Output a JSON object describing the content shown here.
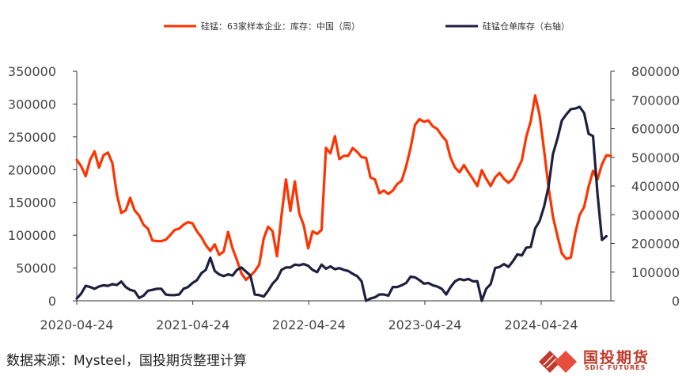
{
  "chart_data": {
    "type": "line",
    "title": "",
    "legend_position": "top",
    "grid": false,
    "x_ticks": [
      "2020-04-24",
      "2021-04-24",
      "2022-04-24",
      "2023-04-24",
      "2024-04-24"
    ],
    "y_left": {
      "range": [
        0,
        350000
      ],
      "ticks": [
        "0",
        "50000",
        "100000",
        "150000",
        "200000",
        "250000",
        "300000",
        "350000"
      ]
    },
    "y_right": {
      "range": [
        0,
        800000
      ],
      "ticks": [
        "0",
        "100000",
        "200000",
        "300000",
        "400000",
        "500000",
        "600000",
        "700000",
        "800000"
      ]
    },
    "series": [
      {
        "name": "硅锰：63家样本企业：库存：中国（周）",
        "axis": "left",
        "color": "#ff3300",
        "points": [
          [
            "2020-04-24",
            215000
          ],
          [
            "2020-05-08",
            205000
          ],
          [
            "2020-05-22",
            190000
          ],
          [
            "2020-06-05",
            215000
          ],
          [
            "2020-06-19",
            228000
          ],
          [
            "2020-07-03",
            203000
          ],
          [
            "2020-07-17",
            222000
          ],
          [
            "2020-07-31",
            226000
          ],
          [
            "2020-08-14",
            210000
          ],
          [
            "2020-08-28",
            163000
          ],
          [
            "2020-09-11",
            134000
          ],
          [
            "2020-09-25",
            138000
          ],
          [
            "2020-10-09",
            157000
          ],
          [
            "2020-10-23",
            138000
          ],
          [
            "2020-11-06",
            130000
          ],
          [
            "2020-11-20",
            116000
          ],
          [
            "2020-12-04",
            110000
          ],
          [
            "2020-12-18",
            92000
          ],
          [
            "2021-01-01",
            91000
          ],
          [
            "2021-01-15",
            91000
          ],
          [
            "2021-01-29",
            93000
          ],
          [
            "2021-02-12",
            100000
          ],
          [
            "2021-02-26",
            108000
          ],
          [
            "2021-03-12",
            110000
          ],
          [
            "2021-03-26",
            116000
          ],
          [
            "2021-04-09",
            120000
          ],
          [
            "2021-04-23",
            118000
          ],
          [
            "2021-05-07",
            106000
          ],
          [
            "2021-05-21",
            97000
          ],
          [
            "2021-06-04",
            85000
          ],
          [
            "2021-06-18",
            76000
          ],
          [
            "2021-07-02",
            86000
          ],
          [
            "2021-07-16",
            70000
          ],
          [
            "2021-07-30",
            75000
          ],
          [
            "2021-08-13",
            105000
          ],
          [
            "2021-08-27",
            80000
          ],
          [
            "2021-09-10",
            62000
          ],
          [
            "2021-09-24",
            42000
          ],
          [
            "2021-10-08",
            32000
          ],
          [
            "2021-10-22",
            38000
          ],
          [
            "2021-11-05",
            45000
          ],
          [
            "2021-11-19",
            55000
          ],
          [
            "2021-12-03",
            95000
          ],
          [
            "2021-12-17",
            113000
          ],
          [
            "2021-12-31",
            106000
          ],
          [
            "2022-01-14",
            68000
          ],
          [
            "2022-01-28",
            130000
          ],
          [
            "2022-02-11",
            185000
          ],
          [
            "2022-02-25",
            137000
          ],
          [
            "2022-03-11",
            182000
          ],
          [
            "2022-03-25",
            133000
          ],
          [
            "2022-04-08",
            115000
          ],
          [
            "2022-04-22",
            80000
          ],
          [
            "2022-05-06",
            106000
          ],
          [
            "2022-05-20",
            102000
          ],
          [
            "2022-06-03",
            108000
          ],
          [
            "2022-06-17",
            233000
          ],
          [
            "2022-07-01",
            225000
          ],
          [
            "2022-07-15",
            251000
          ],
          [
            "2022-07-29",
            216000
          ],
          [
            "2022-08-12",
            221000
          ],
          [
            "2022-08-26",
            221000
          ],
          [
            "2022-09-09",
            233000
          ],
          [
            "2022-09-23",
            227000
          ],
          [
            "2022-10-07",
            219000
          ],
          [
            "2022-10-21",
            218000
          ],
          [
            "2022-11-04",
            188000
          ],
          [
            "2022-11-18",
            185000
          ],
          [
            "2022-12-02",
            164000
          ],
          [
            "2022-12-16",
            168000
          ],
          [
            "2022-12-30",
            163000
          ],
          [
            "2023-01-13",
            168000
          ],
          [
            "2023-01-27",
            178000
          ],
          [
            "2023-02-10",
            183000
          ],
          [
            "2023-02-24",
            205000
          ],
          [
            "2023-03-10",
            233000
          ],
          [
            "2023-03-24",
            268000
          ],
          [
            "2023-04-07",
            277000
          ],
          [
            "2023-04-21",
            273000
          ],
          [
            "2023-05-05",
            275000
          ],
          [
            "2023-05-19",
            266000
          ],
          [
            "2023-06-02",
            262000
          ],
          [
            "2023-06-16",
            252000
          ],
          [
            "2023-06-30",
            244000
          ],
          [
            "2023-07-14",
            218000
          ],
          [
            "2023-07-28",
            203000
          ],
          [
            "2023-08-11",
            196000
          ],
          [
            "2023-08-25",
            207000
          ],
          [
            "2023-09-08",
            196000
          ],
          [
            "2023-09-22",
            186000
          ],
          [
            "2023-10-06",
            175000
          ],
          [
            "2023-10-20",
            199000
          ],
          [
            "2023-11-03",
            186000
          ],
          [
            "2023-11-17",
            175000
          ],
          [
            "2023-12-01",
            188000
          ],
          [
            "2023-12-15",
            195000
          ],
          [
            "2023-12-29",
            186000
          ],
          [
            "2024-01-12",
            180000
          ],
          [
            "2024-01-26",
            186000
          ],
          [
            "2024-02-09",
            200000
          ],
          [
            "2024-02-23",
            214000
          ],
          [
            "2024-03-08",
            250000
          ],
          [
            "2024-03-22",
            274000
          ],
          [
            "2024-04-05",
            313000
          ],
          [
            "2024-04-19",
            283000
          ],
          [
            "2024-05-03",
            230000
          ],
          [
            "2024-05-17",
            173000
          ],
          [
            "2024-05-31",
            128000
          ],
          [
            "2024-06-14",
            99000
          ],
          [
            "2024-06-28",
            72000
          ],
          [
            "2024-07-12",
            64000
          ],
          [
            "2024-07-26",
            66000
          ],
          [
            "2024-08-09",
            103000
          ],
          [
            "2024-08-23",
            131000
          ],
          [
            "2024-09-06",
            143000
          ],
          [
            "2024-09-20",
            174000
          ],
          [
            "2024-10-04",
            198000
          ],
          [
            "2024-10-18",
            185000
          ],
          [
            "2024-11-01",
            208000
          ],
          [
            "2024-11-15",
            222000
          ],
          [
            "2024-11-29",
            221000
          ]
        ]
      },
      {
        "name": "硅锰仓单库存（右轴）",
        "axis": "right",
        "color": "#1f2040",
        "points": [
          [
            "2020-04-24",
            8000
          ],
          [
            "2020-05-08",
            25000
          ],
          [
            "2020-05-22",
            52000
          ],
          [
            "2020-06-05",
            48000
          ],
          [
            "2020-06-19",
            42000
          ],
          [
            "2020-07-03",
            50000
          ],
          [
            "2020-07-17",
            54000
          ],
          [
            "2020-07-31",
            52000
          ],
          [
            "2020-08-14",
            58000
          ],
          [
            "2020-08-28",
            55000
          ],
          [
            "2020-09-11",
            67000
          ],
          [
            "2020-09-25",
            48000
          ],
          [
            "2020-10-09",
            38000
          ],
          [
            "2020-10-23",
            34000
          ],
          [
            "2020-11-06",
            10000
          ],
          [
            "2020-11-20",
            18000
          ],
          [
            "2020-12-04",
            35000
          ],
          [
            "2020-12-18",
            38000
          ],
          [
            "2021-01-01",
            42000
          ],
          [
            "2021-01-15",
            42000
          ],
          [
            "2021-01-29",
            22000
          ],
          [
            "2021-02-12",
            20000
          ],
          [
            "2021-02-26",
            20000
          ],
          [
            "2021-03-12",
            22000
          ],
          [
            "2021-03-26",
            42000
          ],
          [
            "2021-04-09",
            48000
          ],
          [
            "2021-04-23",
            62000
          ],
          [
            "2021-05-07",
            72000
          ],
          [
            "2021-05-21",
            96000
          ],
          [
            "2021-06-04",
            108000
          ],
          [
            "2021-06-18",
            150000
          ],
          [
            "2021-07-02",
            104000
          ],
          [
            "2021-07-16",
            92000
          ],
          [
            "2021-07-30",
            86000
          ],
          [
            "2021-08-13",
            92000
          ],
          [
            "2021-08-27",
            88000
          ],
          [
            "2021-09-10",
            108000
          ],
          [
            "2021-09-24",
            116000
          ],
          [
            "2021-10-08",
            102000
          ],
          [
            "2021-10-22",
            88000
          ],
          [
            "2021-11-05",
            22000
          ],
          [
            "2021-11-19",
            20000
          ],
          [
            "2021-12-03",
            15000
          ],
          [
            "2021-12-17",
            35000
          ],
          [
            "2021-12-31",
            60000
          ],
          [
            "2022-01-14",
            76000
          ],
          [
            "2022-01-28",
            108000
          ],
          [
            "2022-02-11",
            116000
          ],
          [
            "2022-02-25",
            116000
          ],
          [
            "2022-03-11",
            126000
          ],
          [
            "2022-03-25",
            124000
          ],
          [
            "2022-04-08",
            128000
          ],
          [
            "2022-04-22",
            122000
          ],
          [
            "2022-05-06",
            108000
          ],
          [
            "2022-05-20",
            100000
          ],
          [
            "2022-06-03",
            126000
          ],
          [
            "2022-06-17",
            112000
          ],
          [
            "2022-07-01",
            120000
          ],
          [
            "2022-07-15",
            110000
          ],
          [
            "2022-07-29",
            114000
          ],
          [
            "2022-08-12",
            108000
          ],
          [
            "2022-08-26",
            104000
          ],
          [
            "2022-09-09",
            94000
          ],
          [
            "2022-09-23",
            86000
          ],
          [
            "2022-10-07",
            68000
          ],
          [
            "2022-10-21",
            0
          ],
          [
            "2022-11-04",
            8000
          ],
          [
            "2022-11-18",
            12000
          ],
          [
            "2022-12-02",
            22000
          ],
          [
            "2022-12-16",
            22000
          ],
          [
            "2022-12-30",
            18000
          ],
          [
            "2023-01-13",
            48000
          ],
          [
            "2023-01-27",
            48000
          ],
          [
            "2023-02-10",
            54000
          ],
          [
            "2023-02-24",
            62000
          ],
          [
            "2023-03-10",
            84000
          ],
          [
            "2023-03-24",
            82000
          ],
          [
            "2023-04-07",
            72000
          ],
          [
            "2023-04-21",
            60000
          ],
          [
            "2023-05-05",
            62000
          ],
          [
            "2023-05-19",
            54000
          ],
          [
            "2023-06-02",
            50000
          ],
          [
            "2023-06-16",
            42000
          ],
          [
            "2023-06-30",
            22000
          ],
          [
            "2023-07-14",
            48000
          ],
          [
            "2023-07-28",
            68000
          ],
          [
            "2023-08-11",
            76000
          ],
          [
            "2023-08-25",
            72000
          ],
          [
            "2023-09-08",
            76000
          ],
          [
            "2023-09-22",
            68000
          ],
          [
            "2023-10-06",
            68000
          ],
          [
            "2023-10-20",
            0
          ],
          [
            "2023-11-03",
            42000
          ],
          [
            "2023-11-17",
            58000
          ],
          [
            "2023-12-01",
            114000
          ],
          [
            "2023-12-15",
            118000
          ],
          [
            "2023-12-29",
            128000
          ],
          [
            "2024-01-12",
            118000
          ],
          [
            "2024-01-26",
            138000
          ],
          [
            "2024-02-09",
            162000
          ],
          [
            "2024-02-23",
            158000
          ],
          [
            "2024-03-08",
            185000
          ],
          [
            "2024-03-22",
            188000
          ],
          [
            "2024-04-05",
            252000
          ],
          [
            "2024-04-19",
            278000
          ],
          [
            "2024-05-03",
            328000
          ],
          [
            "2024-05-17",
            398000
          ],
          [
            "2024-05-31",
            512000
          ],
          [
            "2024-06-14",
            565000
          ],
          [
            "2024-06-28",
            628000
          ],
          [
            "2024-07-12",
            650000
          ],
          [
            "2024-07-26",
            668000
          ],
          [
            "2024-08-09",
            670000
          ],
          [
            "2024-08-23",
            676000
          ],
          [
            "2024-09-06",
            654000
          ],
          [
            "2024-09-20",
            582000
          ],
          [
            "2024-10-04",
            574000
          ],
          [
            "2024-10-18",
            375000
          ],
          [
            "2024-11-01",
            212000
          ],
          [
            "2024-11-15",
            225000
          ]
        ]
      }
    ]
  },
  "footer": {
    "source": "数据来源：Mysteel，国投期货整理计算",
    "logo_cn": "国投期货",
    "logo_en": "SDIC FUTURES",
    "logo_color": "#c0392b"
  }
}
